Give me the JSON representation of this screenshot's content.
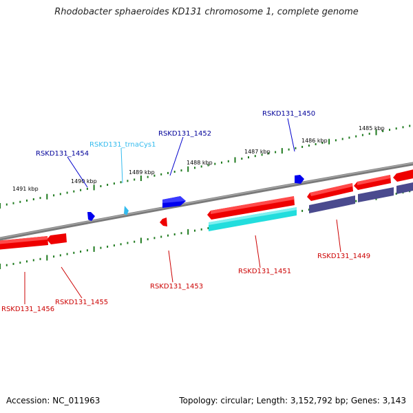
{
  "title": "Rhodobacter sphaeroides KD131 chromosome 1, complete genome",
  "footer": {
    "accession": "Accession: NC_011963",
    "summary": "Topology: circular; Length: 3,152,792 bp; Genes: 3,143"
  },
  "colors": {
    "backbone": "#7a7a7a",
    "tick": "#1e7a1e",
    "forward_gene": "#0000ee",
    "reverse_gene": "#ee0000",
    "trna": "#33bbee",
    "cyan_feature": "#22dddd",
    "slate_feature": "#4a4a8e"
  },
  "kbp_labels": [
    "1485 kbp",
    "1486 kbp",
    "1487 kbp",
    "1488 kbp",
    "1489 kbp",
    "1490 kbp",
    "1491 kbp"
  ],
  "gene_labels": {
    "RSKD131_1450": "RSKD131_1450",
    "RSKD131_1452": "RSKD131_1452",
    "RSKD131_trnaCys1": "RSKD131_trnaCys1",
    "RSKD131_1454": "RSKD131_1454",
    "RSKD131_1449": "RSKD131_1449",
    "RSKD131_1451": "RSKD131_1451",
    "RSKD131_1453": "RSKD131_1453",
    "RSKD131_1455": "RSKD131_1455",
    "RSKD131_1456": "RSKD131_1456"
  }
}
